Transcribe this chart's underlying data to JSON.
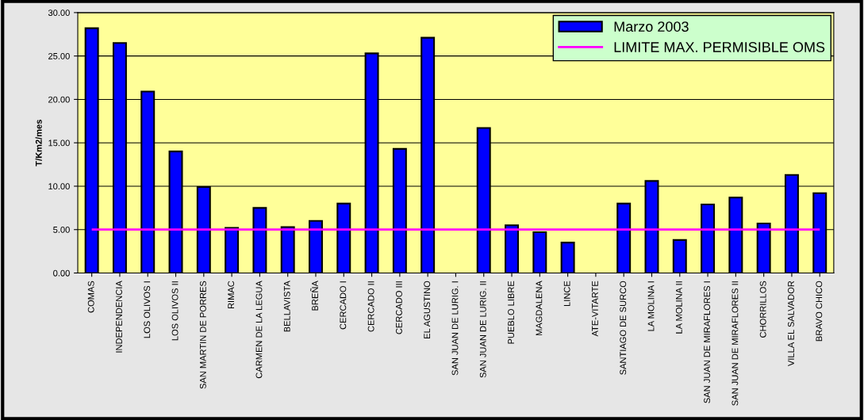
{
  "chart_data": {
    "type": "bar",
    "categories": [
      "COMAS",
      "INDEPENDENCIA",
      "LOS OLIVOS I",
      "LOS OLIVOS II",
      "SAN MARTIN DE PORRES",
      "RIMAC",
      "CARMEN DE LA LEGUA",
      "BELLAVISTA",
      "BREÑA",
      "CERCADO I",
      "CERCADO II",
      "CERCADO III",
      "EL AGUSTINO",
      "SAN JUAN DE LURIG. I",
      "SAN JUAN DE LURIG. II",
      "PUEBLO LIBRE",
      "MAGDALENA",
      "LINCE",
      "ATE-VITARTE",
      "SANTIAGO DE SURCO",
      "LA MOLINA I",
      "LA MOLINA II",
      "SAN JUAN DE MIRAFLORES I",
      "SAN JUAN DE MIRAFLORES II",
      "CHORRILLOS",
      "VILLA EL SALVADOR",
      "BRAVO CHICO"
    ],
    "series": [
      {
        "name": "Marzo 2003",
        "color": "#0000ff",
        "values": [
          28.2,
          26.5,
          20.9,
          14.0,
          9.9,
          5.2,
          7.5,
          5.3,
          6.0,
          8.0,
          25.3,
          14.3,
          27.1,
          null,
          16.7,
          5.5,
          4.7,
          3.5,
          null,
          8.0,
          10.6,
          3.8,
          7.9,
          8.7,
          5.7,
          11.3,
          9.2
        ]
      }
    ],
    "ylabel": "T/Km2/mes",
    "ylim": [
      0,
      30
    ],
    "yticks": [
      {
        "value": 0,
        "label": "0.00"
      },
      {
        "value": 5,
        "label": "5.00"
      },
      {
        "value": 10,
        "label": "10.00"
      },
      {
        "value": 15,
        "label": "15.00"
      },
      {
        "value": 20,
        "label": "20.00"
      },
      {
        "value": 25,
        "label": "25.00"
      },
      {
        "value": 30,
        "label": "30.00"
      }
    ],
    "ref_lines": [
      {
        "axis": "y",
        "value": 5,
        "label": "LIMITE MAX. PERMISIBLE OMS",
        "color": "#ff00ff"
      }
    ],
    "grid": "y",
    "legend": "top right"
  }
}
